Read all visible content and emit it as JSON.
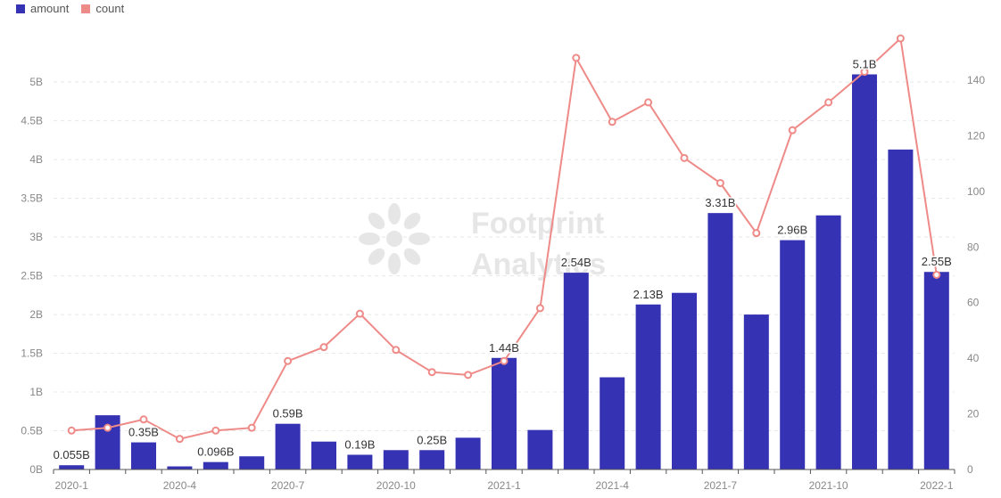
{
  "legend": {
    "amount_label": "amount",
    "count_label": "count"
  },
  "watermark": {
    "line1": "Footprint",
    "line2": "Analytics"
  },
  "colors": {
    "amount": "#3632b4",
    "count": "#ee8a87",
    "grid": "#e8e8e8",
    "axis": "#555555"
  },
  "chart_data": {
    "type": "bar",
    "categories": [
      "2020-1",
      "2020-2",
      "2020-3",
      "2020-4",
      "2020-5",
      "2020-6",
      "2020-7",
      "2020-8",
      "2020-9",
      "2020-10",
      "2020-11",
      "2020-12",
      "2021-1",
      "2021-2",
      "2021-3",
      "2021-4",
      "2021-5",
      "2021-6",
      "2021-7",
      "2021-8",
      "2021-9",
      "2021-10",
      "2021-11",
      "2021-12",
      "2022-1"
    ],
    "x_tick_labels": [
      "2020-1",
      "2020-4",
      "2020-7",
      "2020-10",
      "2021-1",
      "2021-4",
      "2021-7",
      "2021-10",
      "2022-1"
    ],
    "x_tick_indices": [
      0,
      3,
      6,
      9,
      12,
      15,
      18,
      21,
      24
    ],
    "series": [
      {
        "name": "amount",
        "type": "bar",
        "axis": "left",
        "values": [
          0.055,
          0.7,
          0.35,
          0.04,
          0.096,
          0.17,
          0.59,
          0.36,
          0.19,
          0.25,
          0.25,
          0.41,
          1.44,
          0.51,
          2.54,
          1.19,
          2.13,
          2.28,
          3.31,
          2.0,
          2.96,
          3.28,
          5.1,
          4.13,
          2.55
        ]
      },
      {
        "name": "count",
        "type": "line",
        "axis": "right",
        "values": [
          14,
          15,
          18,
          11,
          14,
          15,
          39,
          44,
          56,
          43,
          35,
          34,
          39,
          58,
          148,
          125,
          132,
          112,
          103,
          85,
          122,
          132,
          143,
          155,
          70
        ]
      }
    ],
    "data_labels": [
      {
        "index": 0,
        "text": "0.055B"
      },
      {
        "index": 2,
        "text": "0.35B"
      },
      {
        "index": 4,
        "text": "0.096B"
      },
      {
        "index": 6,
        "text": "0.59B"
      },
      {
        "index": 8,
        "text": "0.19B"
      },
      {
        "index": 10,
        "text": "0.25B"
      },
      {
        "index": 12,
        "text": "1.44B"
      },
      {
        "index": 14,
        "text": "2.54B"
      },
      {
        "index": 16,
        "text": "2.13B"
      },
      {
        "index": 18,
        "text": "3.31B"
      },
      {
        "index": 20,
        "text": "2.96B"
      },
      {
        "index": 22,
        "text": "5.1B"
      },
      {
        "index": 24,
        "text": "2.55B"
      }
    ],
    "y_left": {
      "ticks": [
        0,
        0.5,
        1,
        1.5,
        2,
        2.5,
        3,
        3.5,
        4,
        4.5,
        5
      ],
      "tick_labels": [
        "0B",
        "0.5B",
        "1B",
        "1.5B",
        "2B",
        "2.5B",
        "3B",
        "3.5B",
        "4B",
        "4.5B",
        "5B"
      ],
      "ylim": [
        0,
        5.6
      ]
    },
    "y_right": {
      "ticks": [
        0,
        20,
        40,
        60,
        80,
        100,
        120,
        140
      ],
      "tick_labels": [
        "0",
        "20",
        "40",
        "60",
        "80",
        "100",
        "120",
        "140"
      ],
      "ylim": [
        0,
        156
      ]
    },
    "grid": true,
    "legend_position": "top-left"
  }
}
